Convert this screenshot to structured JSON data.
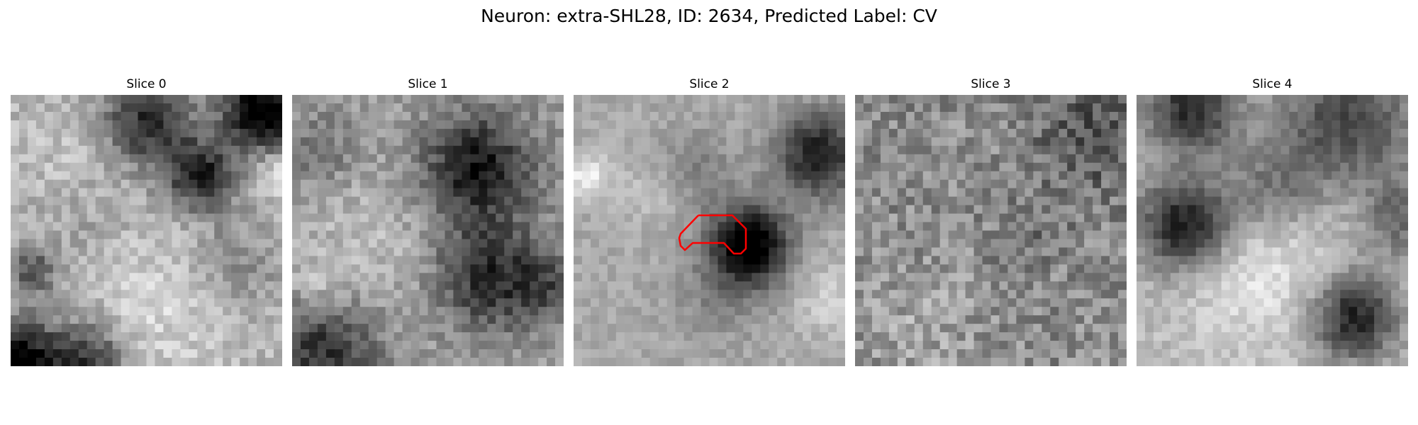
{
  "figure": {
    "title": "Neuron: extra-SHL28, ID: 2634, Predicted Label: CV"
  },
  "panels": [
    {
      "title": "Slice 0",
      "seed": 11,
      "base": 0.7,
      "noise": 0.11,
      "blobs": [
        [
          0.5,
          0.1,
          0.12,
          0.55
        ],
        [
          0.93,
          0.06,
          0.1,
          0.8
        ],
        [
          0.7,
          0.3,
          0.09,
          0.6
        ],
        [
          0.08,
          0.65,
          0.06,
          0.4
        ],
        [
          0.03,
          0.97,
          0.1,
          0.7
        ],
        [
          0.28,
          0.98,
          0.1,
          0.5
        ],
        [
          0.82,
          0.62,
          0.12,
          0.2
        ],
        [
          0.3,
          0.45,
          0.15,
          0.15
        ]
      ],
      "bright": [
        [
          0.3,
          0.3,
          0.18,
          0.12
        ],
        [
          0.55,
          0.75,
          0.2,
          0.15
        ],
        [
          0.98,
          0.3,
          0.06,
          0.2
        ]
      ]
    },
    {
      "title": "Slice 1",
      "seed": 23,
      "base": 0.62,
      "noise": 0.11,
      "blobs": [
        [
          0.68,
          0.27,
          0.14,
          0.55
        ],
        [
          0.72,
          0.67,
          0.14,
          0.45
        ],
        [
          0.12,
          0.95,
          0.14,
          0.45
        ],
        [
          0.1,
          0.2,
          0.1,
          0.18
        ],
        [
          0.95,
          0.7,
          0.1,
          0.25
        ]
      ],
      "bright": [
        [
          0.3,
          0.55,
          0.2,
          0.12
        ],
        [
          0.1,
          0.7,
          0.08,
          0.12
        ]
      ]
    },
    {
      "title": "Slice 2",
      "seed": 37,
      "base": 0.66,
      "noise": 0.07,
      "blobs": [
        [
          0.65,
          0.55,
          0.1,
          0.75
        ],
        [
          0.9,
          0.22,
          0.11,
          0.55
        ],
        [
          0.45,
          0.28,
          0.1,
          0.18
        ],
        [
          0.55,
          0.72,
          0.12,
          0.15
        ]
      ],
      "bright": [
        [
          0.05,
          0.3,
          0.06,
          0.28
        ],
        [
          0.3,
          0.35,
          0.1,
          0.1
        ],
        [
          0.95,
          0.75,
          0.1,
          0.15
        ]
      ],
      "contour": true
    },
    {
      "title": "Slice 3",
      "seed": 49,
      "base": 0.55,
      "noise": 0.16,
      "blobs": [
        [
          0.88,
          0.15,
          0.15,
          0.25
        ],
        [
          0.65,
          0.5,
          0.1,
          0.1
        ]
      ],
      "bright": [
        [
          0.25,
          0.85,
          0.15,
          0.1
        ]
      ]
    },
    {
      "title": "Slice 4",
      "seed": 61,
      "base": 0.72,
      "noise": 0.08,
      "blobs": [
        [
          0.18,
          0.48,
          0.12,
          0.65
        ],
        [
          0.8,
          0.82,
          0.11,
          0.6
        ],
        [
          0.2,
          0.05,
          0.12,
          0.55
        ],
        [
          0.78,
          0.1,
          0.18,
          0.45
        ],
        [
          0.95,
          0.45,
          0.1,
          0.35
        ],
        [
          0.5,
          0.35,
          0.12,
          0.25
        ]
      ],
      "bright": [
        [
          0.45,
          0.65,
          0.2,
          0.18
        ],
        [
          0.85,
          0.4,
          0.1,
          0.1
        ]
      ]
    }
  ]
}
